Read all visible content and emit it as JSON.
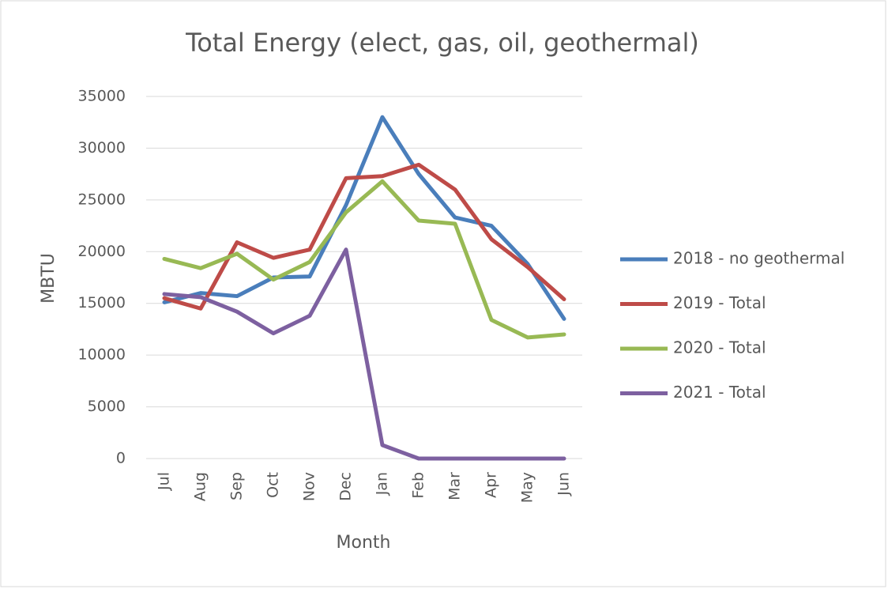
{
  "chart_data": {
    "type": "line",
    "title": "Total Energy (elect, gas, oil, geothermal)",
    "x_label": "Month",
    "y_label": "MBTU",
    "categories": [
      "Jul",
      "Aug",
      "Sep",
      "Oct",
      "Nov",
      "Dec",
      "Jan",
      "Feb",
      "Mar",
      "Apr",
      "May",
      "Jun"
    ],
    "series": [
      {
        "name": "2018 - no geothermal",
        "color": "#4a7ebb",
        "values": [
          15100,
          16000,
          15700,
          17500,
          17600,
          24500,
          33000,
          27500,
          23300,
          22500,
          18800,
          13500
        ]
      },
      {
        "name": "2019 - Total",
        "color": "#be4b48",
        "values": [
          15500,
          14500,
          20900,
          19400,
          20200,
          27100,
          27300,
          28400,
          26000,
          21200,
          18500,
          15400
        ]
      },
      {
        "name": "2020 - Total",
        "color": "#98b954",
        "values": [
          19300,
          18400,
          19800,
          17300,
          19000,
          23800,
          26800,
          23000,
          22700,
          13400,
          11700,
          12000
        ]
      },
      {
        "name": "2021 - Total",
        "color": "#7d60a0",
        "values": [
          15900,
          15600,
          14200,
          12100,
          13800,
          20200,
          1300,
          0,
          0,
          0,
          0,
          0
        ]
      }
    ],
    "ylim": [
      0,
      35000
    ],
    "yticks": [
      0,
      5000,
      10000,
      15000,
      20000,
      25000,
      30000,
      35000
    ],
    "grid": true,
    "legend": "right"
  }
}
